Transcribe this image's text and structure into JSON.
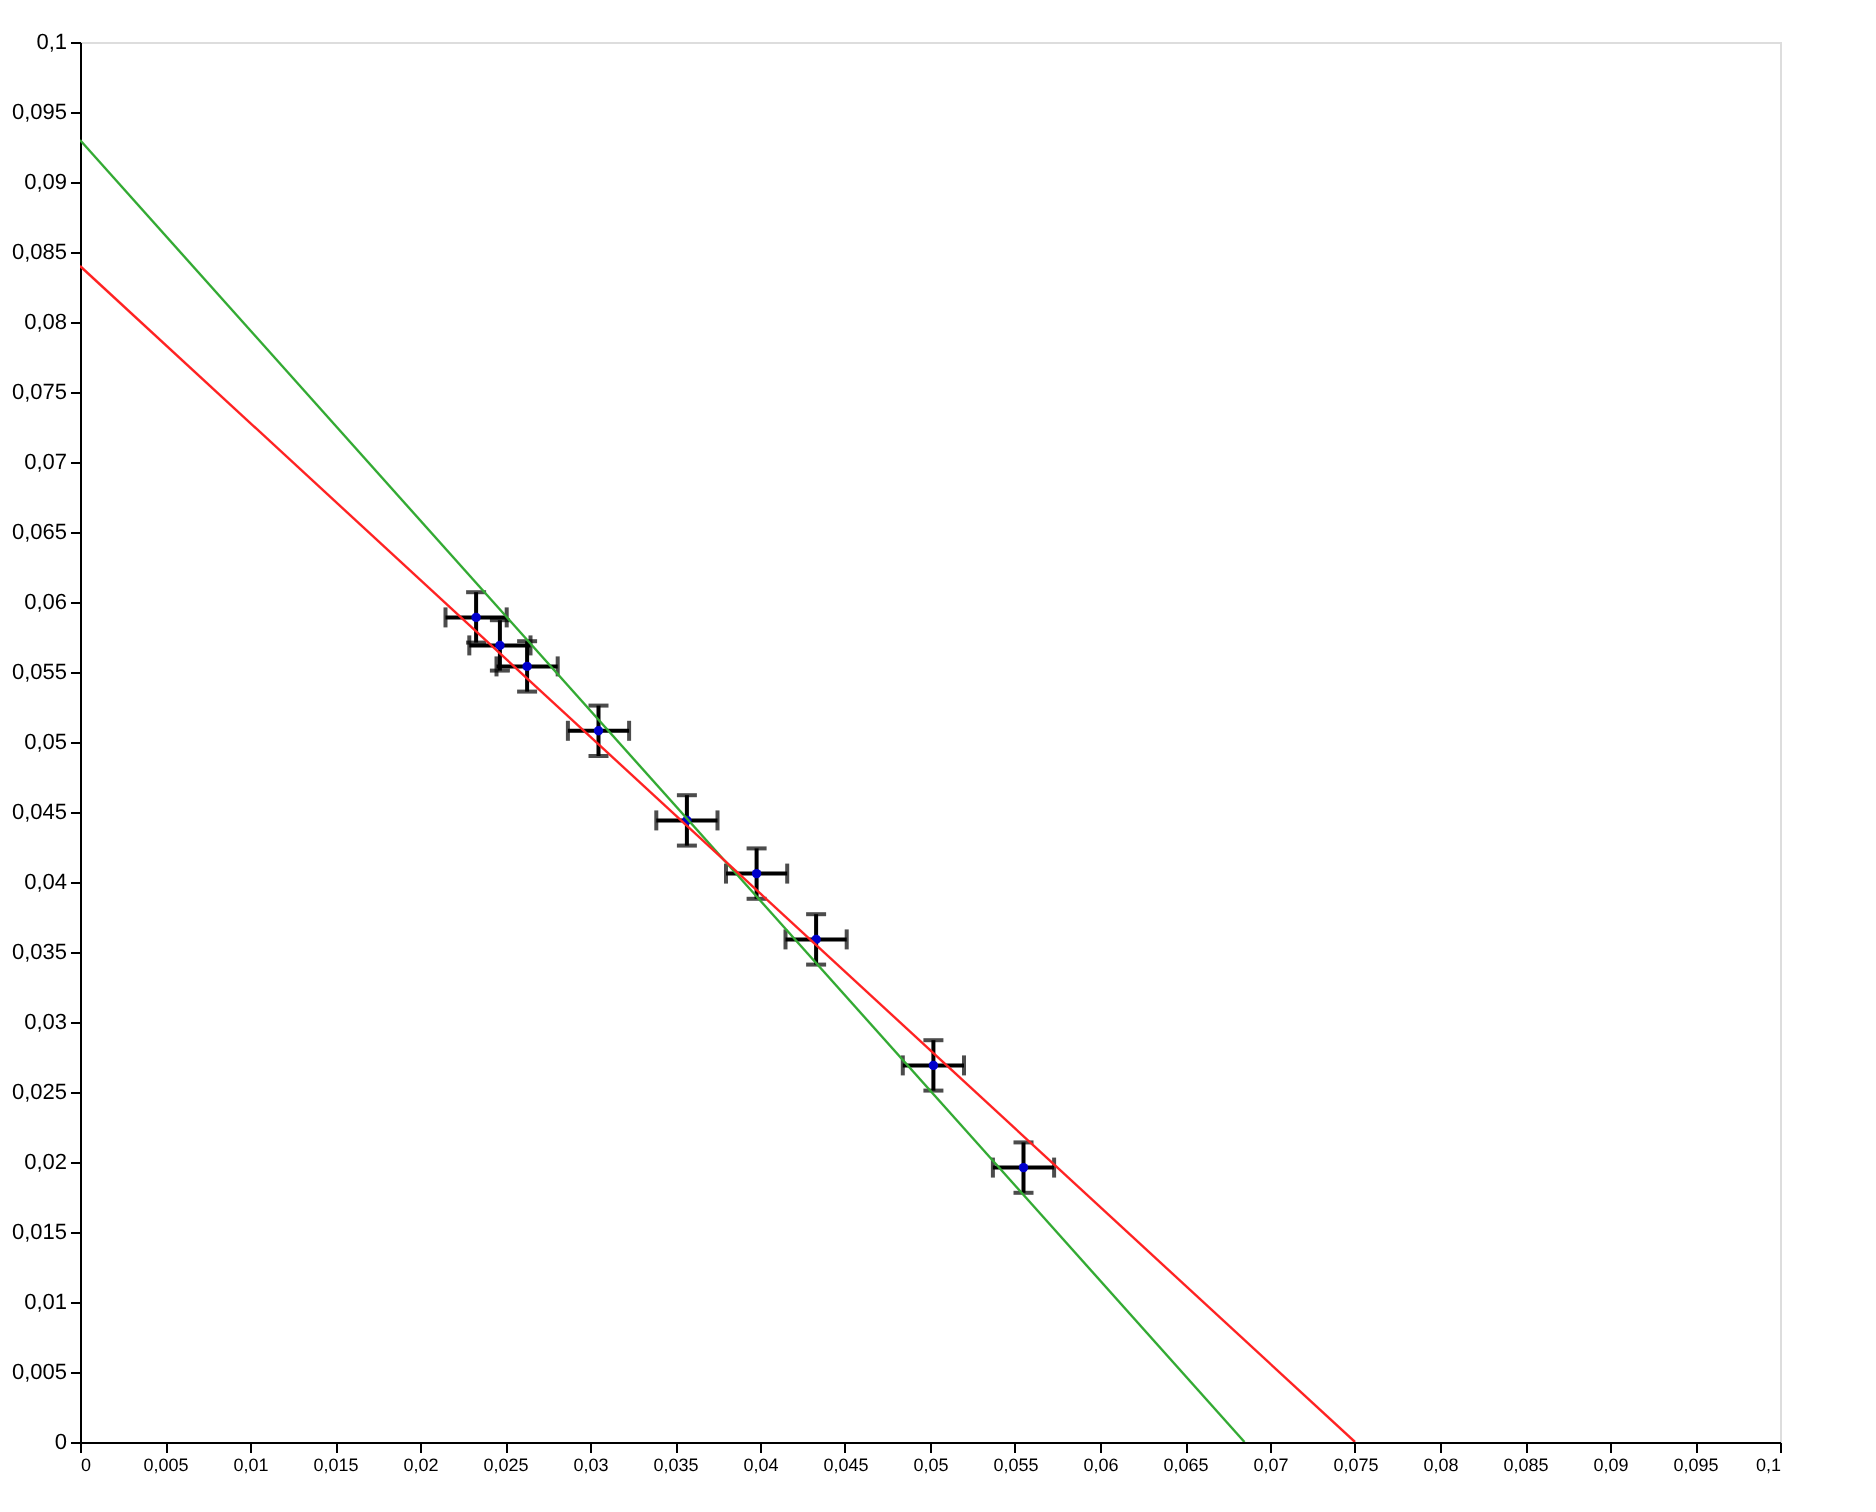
{
  "chart_data": {
    "type": "scatter",
    "xlim": [
      0,
      0.1
    ],
    "ylim": [
      0,
      0.1
    ],
    "xticks": [
      {
        "value": 0,
        "label": "0"
      },
      {
        "value": 0.005,
        "label": "0,005"
      },
      {
        "value": 0.01,
        "label": "0,01"
      },
      {
        "value": 0.015,
        "label": "0,015"
      },
      {
        "value": 0.02,
        "label": "0,02"
      },
      {
        "value": 0.025,
        "label": "0,025"
      },
      {
        "value": 0.03,
        "label": "0,03"
      },
      {
        "value": 0.035,
        "label": "0,035"
      },
      {
        "value": 0.04,
        "label": "0,04"
      },
      {
        "value": 0.045,
        "label": "0,045"
      },
      {
        "value": 0.05,
        "label": "0,05"
      },
      {
        "value": 0.055,
        "label": "0,055"
      },
      {
        "value": 0.06,
        "label": "0,06"
      },
      {
        "value": 0.065,
        "label": "0,065"
      },
      {
        "value": 0.07,
        "label": "0,07"
      },
      {
        "value": 0.075,
        "label": "0,075"
      },
      {
        "value": 0.08,
        "label": "0,08"
      },
      {
        "value": 0.085,
        "label": "0,085"
      },
      {
        "value": 0.09,
        "label": "0,09"
      },
      {
        "value": 0.095,
        "label": "0,095"
      },
      {
        "value": 0.1,
        "label": "0,1"
      }
    ],
    "yticks": [
      {
        "value": 0,
        "label": "0"
      },
      {
        "value": 0.005,
        "label": "0,005"
      },
      {
        "value": 0.01,
        "label": "0,01"
      },
      {
        "value": 0.015,
        "label": "0,015"
      },
      {
        "value": 0.02,
        "label": "0,02"
      },
      {
        "value": 0.025,
        "label": "0,025"
      },
      {
        "value": 0.03,
        "label": "0,03"
      },
      {
        "value": 0.035,
        "label": "0,035"
      },
      {
        "value": 0.04,
        "label": "0,04"
      },
      {
        "value": 0.045,
        "label": "0,045"
      },
      {
        "value": 0.05,
        "label": "0,05"
      },
      {
        "value": 0.055,
        "label": "0,055"
      },
      {
        "value": 0.06,
        "label": "0,06"
      },
      {
        "value": 0.065,
        "label": "0,065"
      },
      {
        "value": 0.07,
        "label": "0,07"
      },
      {
        "value": 0.075,
        "label": "0,075"
      },
      {
        "value": 0.08,
        "label": "0,08"
      },
      {
        "value": 0.085,
        "label": "0,085"
      },
      {
        "value": 0.09,
        "label": "0,09"
      },
      {
        "value": 0.095,
        "label": "0,095"
      },
      {
        "value": 0.1,
        "label": "0,1"
      }
    ],
    "grid": false,
    "series": [
      {
        "color": "#0000cc",
        "marker": "circle",
        "x": [
          0.0233,
          0.0247,
          0.0263,
          0.0305,
          0.0357,
          0.0398,
          0.0433,
          0.0502,
          0.0555
        ],
        "values": [
          0.0589,
          0.0569,
          0.0554,
          0.0508,
          0.0444,
          0.0406,
          0.0359,
          0.0269,
          0.0196
        ],
        "errors": [
          0.0018,
          0.0018,
          0.0018,
          0.0018,
          0.0018,
          0.0018,
          0.0018,
          0.0018,
          0.0018
        ],
        "xerrors": [
          0.0018,
          0.0018,
          0.0018,
          0.0018,
          0.0018,
          0.0018,
          0.0018,
          0.0018,
          0.0018
        ]
      },
      {
        "type": "line",
        "color": "#33aa33",
        "line_style": "solid",
        "x": [
          0,
          0.0685
        ],
        "values": [
          0.093,
          0
        ]
      },
      {
        "type": "line",
        "color": "#ff2222",
        "line_style": "solid",
        "x": [
          0,
          0.075
        ],
        "values": [
          0.084,
          0
        ]
      }
    ]
  }
}
